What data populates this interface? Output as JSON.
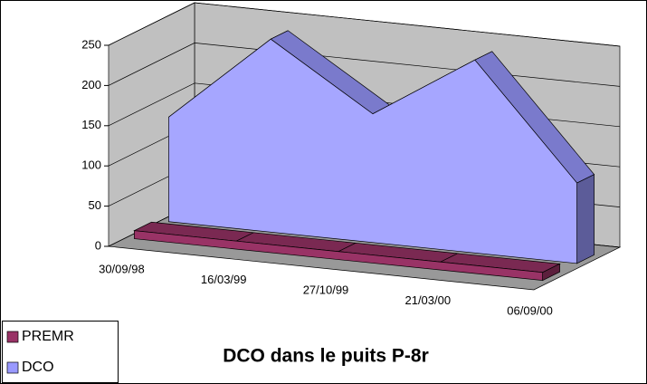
{
  "chart_data": {
    "type": "area3d",
    "title": "DCO dans le puits P-8r",
    "categories": [
      "30/09/98",
      "16/03/99",
      "27/10/99",
      "21/03/00",
      "06/09/00"
    ],
    "series": [
      {
        "name": "PREMR",
        "color": "#993366",
        "values": [
          10,
          10,
          10,
          10,
          10
        ]
      },
      {
        "name": "DCO",
        "color": "#9999ff",
        "values": [
          130,
          240,
          160,
          240,
          100
        ]
      }
    ],
    "ylim": [
      0,
      250
    ],
    "yticks": [
      0,
      50,
      100,
      150,
      200,
      250
    ],
    "grid": true,
    "legend": "bottom-left"
  }
}
